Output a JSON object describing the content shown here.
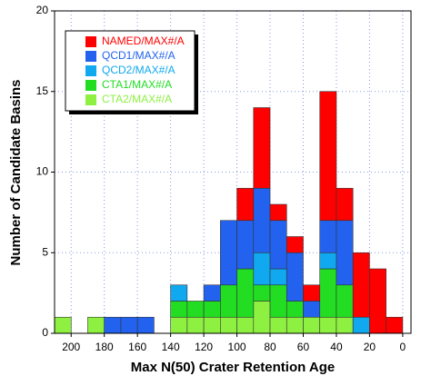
{
  "chart_data": {
    "type": "histogram",
    "xlabel": "Max N(50) Crater Retention Age",
    "ylabel": "Number of Candidate Basins",
    "bins": [
      210,
      200,
      190,
      180,
      170,
      160,
      150,
      140,
      130,
      120,
      110,
      100,
      90,
      80,
      70,
      60,
      50,
      40,
      30,
      20,
      10,
      0
    ],
    "series": [
      {
        "name": "NAMED/MAX#/A",
        "color": "#ff0000",
        "values": [
          0,
          0,
          0,
          0,
          0,
          0,
          0,
          0,
          0,
          0,
          0,
          2,
          5,
          1,
          1,
          1,
          8,
          2,
          4,
          4,
          1
        ]
      },
      {
        "name": "QCD1/MAX#/A",
        "color": "#2262ee",
        "values": [
          0,
          0,
          0,
          1,
          1,
          1,
          0,
          0,
          0,
          1,
          4,
          3,
          4,
          3,
          3,
          1,
          2,
          4,
          0,
          0,
          0
        ]
      },
      {
        "name": "QCD2/MAX#/A",
        "color": "#10a8ee",
        "values": [
          0,
          0,
          0,
          0,
          0,
          0,
          0,
          1,
          0,
          0,
          0,
          0,
          2,
          1,
          0,
          0,
          1,
          0,
          1,
          0,
          0
        ]
      },
      {
        "name": "CTA1/MAX#/A",
        "color": "#22dd22",
        "values": [
          0,
          0,
          0,
          0,
          0,
          0,
          0,
          1,
          1,
          1,
          2,
          3,
          1,
          2,
          1,
          0,
          3,
          2,
          0,
          0,
          0
        ]
      },
      {
        "name": "CTA2/MAX#/A",
        "color": "#8ef040",
        "values": [
          1,
          0,
          1,
          0,
          0,
          0,
          0,
          1,
          1,
          1,
          1,
          1,
          2,
          1,
          1,
          1,
          1,
          1,
          0,
          0,
          0
        ]
      }
    ],
    "stacked": true,
    "xlim": [
      210,
      -5
    ],
    "ylim": [
      0,
      20
    ],
    "xticks": [
      200,
      180,
      160,
      140,
      120,
      100,
      80,
      60,
      40,
      20,
      0
    ],
    "yticks": [
      0,
      5,
      10,
      15,
      20
    ],
    "grid": true,
    "legend": "upper left"
  }
}
